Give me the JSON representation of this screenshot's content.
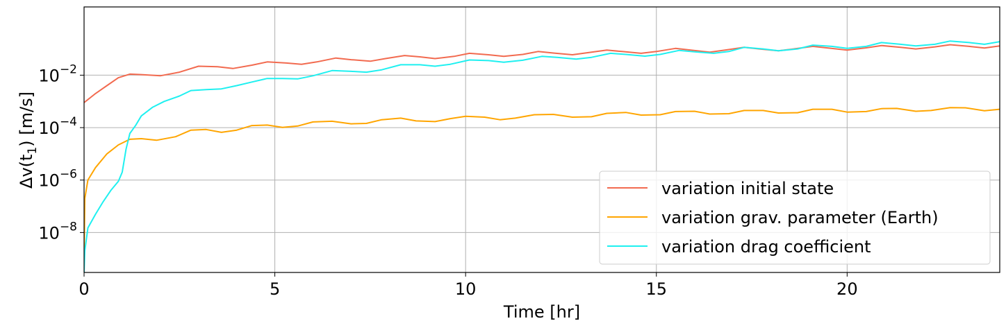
{
  "chart_data": {
    "type": "line",
    "xlabel": "Time [hr]",
    "ylabel_parts": [
      "Δv(t",
      "1",
      ") [m/s]"
    ],
    "xlim": [
      0,
      24
    ],
    "ylim": [
      3e-10,
      4
    ],
    "yscale": "log",
    "grid": true,
    "legend_position": "lower-right",
    "x_ticks": [
      {
        "value": 0,
        "label": "0"
      },
      {
        "value": 5,
        "label": "5"
      },
      {
        "value": 10,
        "label": "10"
      },
      {
        "value": 15,
        "label": "15"
      },
      {
        "value": 20,
        "label": "20"
      }
    ],
    "y_ticks": [
      {
        "value": 1e-08,
        "label": "10",
        "exp": "−8"
      },
      {
        "value": 1e-06,
        "label": "10",
        "exp": "−6"
      },
      {
        "value": 0.0001,
        "label": "10",
        "exp": "−4"
      },
      {
        "value": 0.01,
        "label": "10",
        "exp": "−2"
      }
    ],
    "series": [
      {
        "name": "variation initial state",
        "color": "#f26a4f",
        "x": [
          0,
          0.3,
          0.6,
          0.9,
          1.2,
          1.5,
          2.0,
          2.5,
          3.0,
          3.5,
          3.9,
          4.4,
          4.8,
          5.3,
          5.7,
          6.1,
          6.6,
          7.0,
          7.5,
          7.9,
          8.4,
          8.8,
          9.2,
          9.7,
          10.1,
          10.6,
          11.0,
          11.5,
          11.9,
          12.3,
          12.8,
          13.2,
          13.7,
          14.1,
          14.6,
          15.0,
          15.5,
          15.9,
          16.4,
          16.8,
          17.3,
          17.7,
          18.2,
          18.6,
          19.1,
          19.5,
          20.0,
          20.5,
          20.9,
          21.4,
          21.8,
          22.3,
          22.7,
          23.2,
          23.6,
          24.0
        ],
        "y": [
          0.0009,
          0.002,
          0.004,
          0.008,
          0.011,
          0.0105,
          0.0095,
          0.013,
          0.022,
          0.021,
          0.018,
          0.024,
          0.032,
          0.029,
          0.026,
          0.032,
          0.045,
          0.039,
          0.034,
          0.043,
          0.056,
          0.05,
          0.043,
          0.052,
          0.068,
          0.06,
          0.052,
          0.062,
          0.08,
          0.07,
          0.06,
          0.072,
          0.09,
          0.08,
          0.068,
          0.08,
          0.105,
          0.09,
          0.075,
          0.09,
          0.115,
          0.1,
          0.085,
          0.1,
          0.125,
          0.108,
          0.09,
          0.11,
          0.135,
          0.115,
          0.1,
          0.12,
          0.145,
          0.125,
          0.108,
          0.13
        ]
      },
      {
        "name": "variation grav. parameter (Earth)",
        "color": "#ffa500",
        "x": [
          0,
          0.02,
          0.1,
          0.3,
          0.6,
          0.9,
          1.2,
          1.5,
          1.9,
          2.4,
          2.8,
          3.2,
          3.6,
          4.0,
          4.4,
          4.8,
          5.2,
          5.6,
          6.0,
          6.5,
          7.0,
          7.4,
          7.8,
          8.3,
          8.7,
          9.2,
          9.6,
          10.0,
          10.5,
          10.9,
          11.3,
          11.8,
          12.3,
          12.8,
          13.3,
          13.7,
          14.2,
          14.6,
          15.1,
          15.5,
          16.0,
          16.4,
          16.9,
          17.3,
          17.8,
          18.2,
          18.7,
          19.1,
          19.6,
          20.0,
          20.5,
          20.9,
          21.3,
          21.8,
          22.2,
          22.7,
          23.1,
          23.6,
          24.0
        ],
        "y": [
          1e-09,
          2e-07,
          1e-06,
          3e-06,
          1e-05,
          2.2e-05,
          3.6e-05,
          3.8e-05,
          3.3e-05,
          4.5e-05,
          8e-05,
          8.5e-05,
          6.6e-05,
          8e-05,
          0.00012,
          0.000125,
          0.000102,
          0.000115,
          0.000165,
          0.000175,
          0.00014,
          0.000145,
          0.0002,
          0.00023,
          0.00018,
          0.00017,
          0.00022,
          0.00027,
          0.00025,
          0.0002,
          0.00023,
          0.00031,
          0.00032,
          0.00025,
          0.00026,
          0.00035,
          0.00038,
          0.0003,
          0.00031,
          0.00041,
          0.00042,
          0.00033,
          0.00034,
          0.00045,
          0.00045,
          0.00036,
          0.00037,
          0.0005,
          0.0005,
          0.00039,
          0.00041,
          0.00053,
          0.00054,
          0.00042,
          0.00045,
          0.00058,
          0.00057,
          0.00044,
          0.0005
        ]
      },
      {
        "name": "variation drag coefficient",
        "color": "#1ef0f0",
        "x": [
          0,
          0.02,
          0.1,
          0.3,
          0.5,
          0.7,
          0.9,
          1.0,
          1.1,
          1.2,
          1.35,
          1.5,
          1.8,
          2.1,
          2.5,
          2.8,
          3.2,
          3.6,
          4.0,
          4.4,
          4.8,
          5.2,
          5.6,
          6.0,
          6.5,
          7.0,
          7.4,
          7.8,
          8.3,
          8.8,
          9.2,
          9.6,
          10.1,
          10.6,
          11.0,
          11.5,
          12.0,
          12.4,
          12.9,
          13.3,
          13.8,
          14.2,
          14.7,
          15.1,
          15.6,
          16.0,
          16.5,
          16.9,
          17.3,
          17.8,
          18.2,
          18.7,
          19.1,
          19.6,
          20.0,
          20.5,
          20.9,
          21.4,
          21.8,
          22.3,
          22.7,
          23.2,
          23.6,
          24.0
        ],
        "y": [
          3e-10,
          2e-09,
          1.5e-08,
          5e-08,
          1.5e-07,
          4e-07,
          9e-07,
          2e-06,
          1.5e-05,
          6e-05,
          0.00012,
          0.00028,
          0.0006,
          0.001,
          0.0016,
          0.0026,
          0.0028,
          0.003,
          0.004,
          0.0055,
          0.0075,
          0.0075,
          0.0072,
          0.0095,
          0.015,
          0.014,
          0.013,
          0.016,
          0.025,
          0.025,
          0.022,
          0.026,
          0.038,
          0.036,
          0.031,
          0.037,
          0.052,
          0.048,
          0.041,
          0.048,
          0.068,
          0.062,
          0.053,
          0.062,
          0.088,
          0.078,
          0.068,
          0.08,
          0.115,
          0.1,
          0.085,
          0.1,
          0.14,
          0.125,
          0.105,
          0.125,
          0.175,
          0.15,
          0.13,
          0.15,
          0.2,
          0.175,
          0.15,
          0.19
        ]
      }
    ]
  }
}
